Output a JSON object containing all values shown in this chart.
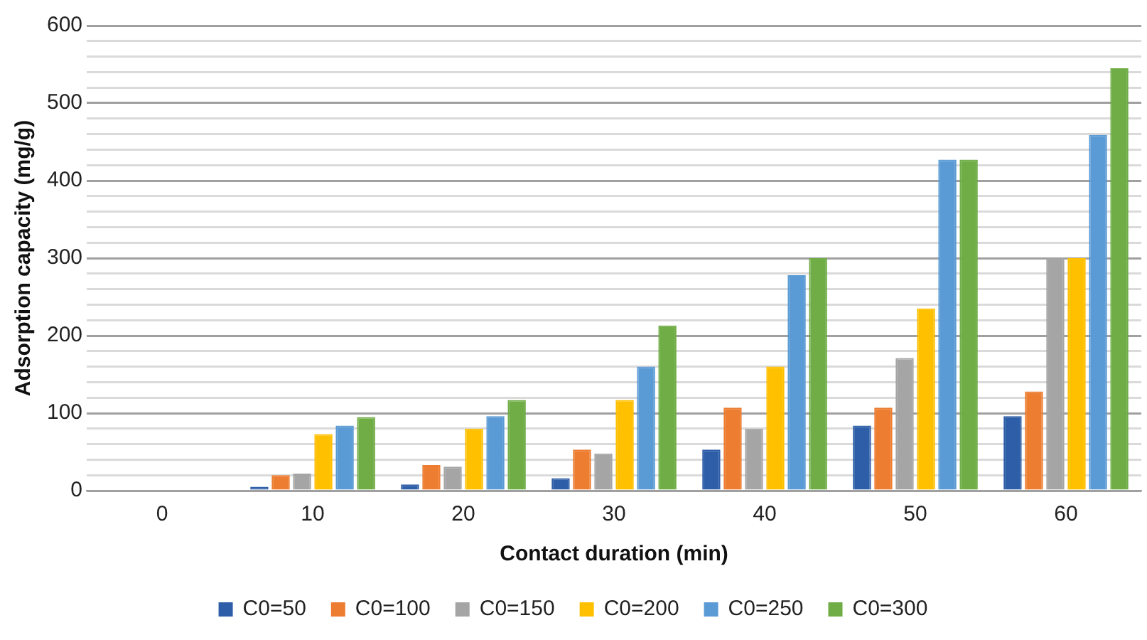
{
  "chart_data": {
    "type": "bar",
    "xlabel": "Contact duration (min)",
    "ylabel": "Adsorption capacity (mg/g)",
    "categories": [
      "0",
      "10",
      "20",
      "30",
      "40",
      "50",
      "60"
    ],
    "series": [
      {
        "name": "C0=50",
        "color": "#2e5ea8",
        "values": [
          0,
          5,
          8,
          16,
          53,
          84,
          96
        ]
      },
      {
        "name": "C0=100",
        "color": "#ed7d31",
        "values": [
          0,
          20,
          33,
          53,
          107,
          107,
          128
        ]
      },
      {
        "name": "C0=150",
        "color": "#a5a5a5",
        "values": [
          0,
          22,
          31,
          48,
          80,
          171,
          300
        ]
      },
      {
        "name": "C0=200",
        "color": "#ffc000",
        "values": [
          0,
          73,
          80,
          117,
          160,
          235,
          300
        ]
      },
      {
        "name": "C0=250",
        "color": "#5b9bd5",
        "values": [
          0,
          84,
          96,
          160,
          278,
          427,
          459
        ]
      },
      {
        "name": "C0=300",
        "color": "#70ad47",
        "values": [
          0,
          95,
          117,
          213,
          300,
          427,
          545
        ]
      }
    ],
    "ylim": [
      0,
      600
    ],
    "yticks": [
      0,
      {
        "value": 20,
        "label": null
      },
      {
        "value": 40,
        "label": null
      },
      {
        "value": 60,
        "label": null
      },
      {
        "value": 80,
        "label": null
      },
      100,
      {
        "value": 120,
        "label": null
      },
      {
        "value": 140,
        "label": null
      },
      {
        "value": 160,
        "label": null
      },
      {
        "value": 180,
        "label": null
      },
      200,
      {
        "value": 220,
        "label": null
      },
      {
        "value": 240,
        "label": null
      },
      {
        "value": 260,
        "label": null
      },
      {
        "value": 280,
        "label": null
      },
      300,
      {
        "value": 320,
        "label": null
      },
      {
        "value": 340,
        "label": null
      },
      {
        "value": 360,
        "label": null
      },
      {
        "value": 380,
        "label": null
      },
      400,
      {
        "value": 420,
        "label": null
      },
      {
        "value": 440,
        "label": null
      },
      {
        "value": 460,
        "label": null
      },
      {
        "value": 480,
        "label": null
      },
      500,
      {
        "value": 520,
        "label": null
      },
      {
        "value": 540,
        "label": null
      },
      {
        "value": 560,
        "label": null
      },
      {
        "value": 580,
        "label": null
      },
      600
    ],
    "grid": "y",
    "legend": "bottom"
  }
}
